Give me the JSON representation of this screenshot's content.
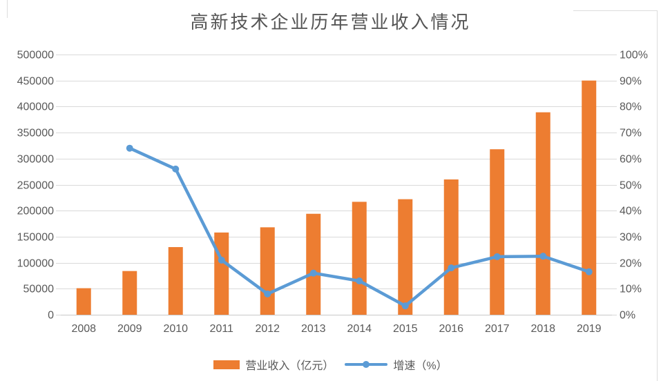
{
  "title": "高新技术企业历年营业收入情况",
  "legend": {
    "revenue_label": "营业收入（亿元）",
    "growth_label": "增速（%）"
  },
  "colors": {
    "bar": "#ED7D31",
    "line": "#5B9BD5",
    "gridline": "#D9D9D9",
    "axis_line": "#C8C8C8",
    "axis_text": "#595959",
    "title_text": "#555555"
  },
  "chart_data": {
    "type": "combo bar+line",
    "title": "高新技术企业历年营业收入情况",
    "categories": [
      "2008",
      "2009",
      "2010",
      "2011",
      "2012",
      "2013",
      "2014",
      "2015",
      "2016",
      "2017",
      "2018",
      "2019"
    ],
    "series": [
      {
        "name": "营业收入（亿元）",
        "type": "bar",
        "axis": "left",
        "values": [
          51000,
          84000,
          130000,
          158000,
          168000,
          194000,
          217000,
          222000,
          260000,
          318000,
          389000,
          450000
        ]
      },
      {
        "name": "增速（%）",
        "type": "line",
        "axis": "right",
        "values": [
          null,
          64,
          56,
          21,
          8,
          16,
          13,
          3.4,
          18,
          22.3,
          22.5,
          16.5
        ]
      }
    ],
    "left_axis": {
      "min": 0,
      "max": 500000,
      "step": 50000,
      "tick_labels": [
        "0",
        "50000",
        "100000",
        "150000",
        "200000",
        "250000",
        "300000",
        "350000",
        "400000",
        "450000",
        "500000"
      ]
    },
    "right_axis": {
      "min": 0,
      "max": 100,
      "step": 10,
      "tick_labels": [
        "0%",
        "10%",
        "20%",
        "30%",
        "40%",
        "50%",
        "60%",
        "70%",
        "80%",
        "90%",
        "100%"
      ]
    },
    "grid": true,
    "legend_position": "bottom"
  }
}
